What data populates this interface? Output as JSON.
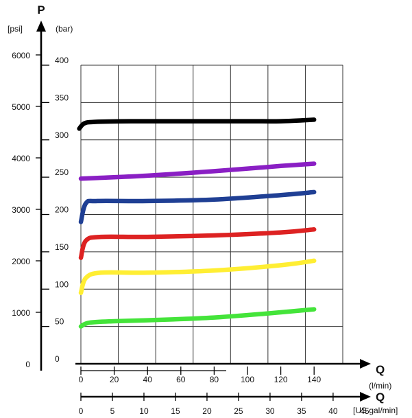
{
  "chart_data": {
    "type": "line",
    "axis_label_y": "P",
    "unit_psi": "[psi]",
    "unit_bar": "(bar)",
    "axis_label_x": "Q",
    "axis_label_x2": "Q",
    "unit_lmin": "(l/min)",
    "unit_usgal": "[US gal/min]",
    "psi_ticks": [
      "6000",
      "5000",
      "4000",
      "3000",
      "2000",
      "1000",
      "0"
    ],
    "psi_values": [
      6000,
      5000,
      4000,
      3000,
      2000,
      1000,
      0
    ],
    "bar_ticks": [
      "400",
      "350",
      "300",
      "250",
      "200",
      "150",
      "100",
      "50",
      "0"
    ],
    "bar_values": [
      400,
      350,
      300,
      250,
      200,
      150,
      100,
      50,
      0
    ],
    "lmin_ticks": [
      "0",
      "20",
      "40",
      "60",
      "80",
      "100",
      "120",
      "140"
    ],
    "lmin_values": [
      0,
      20,
      40,
      60,
      80,
      100,
      120,
      140
    ],
    "usgal_ticks": [
      "0",
      "5",
      "10",
      "15",
      "20",
      "25",
      "30",
      "35",
      "40",
      "45"
    ],
    "usgal_values": [
      0,
      5,
      10,
      15,
      20,
      25,
      30,
      35,
      40,
      45
    ],
    "ylim_bar": [
      0,
      400
    ],
    "xlim_lmin": [
      0,
      140
    ],
    "grid": true,
    "series": [
      {
        "color": "#000000",
        "x": [
          -1,
          2,
          8,
          30,
          60,
          100,
          120,
          140
        ],
        "y": [
          315,
          322,
          324,
          325,
          325,
          325,
          325,
          327
        ]
      },
      {
        "color": "#8a1fc4",
        "x": [
          0,
          10,
          40,
          80,
          120,
          140
        ],
        "y": [
          248,
          249,
          252,
          258,
          265,
          268
        ]
      },
      {
        "color": "#1f3f94",
        "x": [
          0,
          3,
          10,
          40,
          80,
          120,
          140
        ],
        "y": [
          190,
          215,
          218,
          218,
          220,
          226,
          230
        ]
      },
      {
        "color": "#dd2222",
        "x": [
          0,
          3,
          12,
          40,
          80,
          120,
          140
        ],
        "y": [
          142,
          165,
          170,
          170,
          172,
          176,
          180
        ]
      },
      {
        "color": "#ffee33",
        "x": [
          0,
          3,
          12,
          40,
          80,
          120,
          140
        ],
        "y": [
          95,
          115,
          122,
          122,
          125,
          132,
          138
        ]
      },
      {
        "color": "#44e43a",
        "x": [
          0,
          5,
          20,
          50,
          80,
          110,
          140
        ],
        "y": [
          50,
          55,
          57,
          59,
          62,
          67,
          73
        ]
      }
    ]
  }
}
